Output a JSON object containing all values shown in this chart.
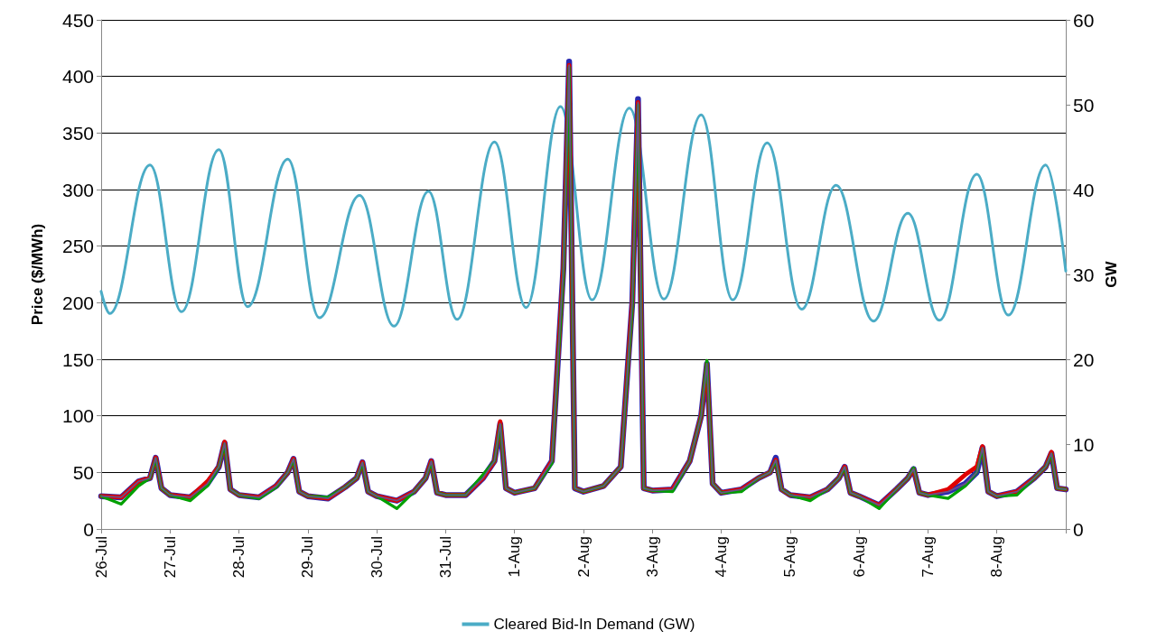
{
  "chart_data": {
    "type": "line",
    "ylabel": "Price ($/MWh)",
    "y2label": "GW",
    "x": [
      "--07-26",
      "--07-26T07:00",
      "--07-26T13:00",
      "--07-26T17:00",
      "--07-26T19:00",
      "--07-26T21:00",
      "--07-27",
      "--07-27T07:00",
      "--07-27T13:00",
      "--07-27T17:00",
      "--07-27T19:00",
      "--07-27T21:00",
      "--07-28",
      "--07-28T07:00",
      "--07-28T13:00",
      "--07-28T17:00",
      "--07-28T19:00",
      "--07-28T21:00",
      "--07-29",
      "--07-29T07:00",
      "--07-29T13:00",
      "--07-29T17:00",
      "--07-29T19:00",
      "--07-29T21:00",
      "--07-30",
      "--07-30T07:00",
      "--07-30T13:00",
      "--07-30T17:00",
      "--07-30T19:00",
      "--07-30T21:00",
      "--07-31",
      "--07-31T07:00",
      "--07-31T13:00",
      "--07-31T17:00",
      "--07-31T19:00",
      "--07-31T21:00",
      "--08-01",
      "--08-01T07:00",
      "--08-01T13:00",
      "--08-01T17:00",
      "--08-01T19:00",
      "--08-01T21:00",
      "--08-02",
      "--08-02T07:00",
      "--08-02T13:00",
      "--08-02T17:00",
      "--08-02T19:00",
      "--08-02T21:00",
      "--08-03",
      "--08-03T07:00",
      "--08-03T13:00",
      "--08-03T17:00",
      "--08-03T19:00",
      "--08-03T21:00",
      "--08-04",
      "--08-04T07:00",
      "--08-04T13:00",
      "--08-04T17:00",
      "--08-04T19:00",
      "--08-04T21:00",
      "--08-05",
      "--08-05T07:00",
      "--08-05T13:00",
      "--08-05T17:00",
      "--08-05T19:00",
      "--08-05T21:00",
      "--08-06",
      "--08-06T07:00",
      "--08-06T13:00",
      "--08-06T17:00",
      "--08-06T19:00",
      "--08-06T21:00",
      "--08-07",
      "--08-07T07:00",
      "--08-07T13:00",
      "--08-07T17:00",
      "--08-07T19:00",
      "--08-07T21:00",
      "--08-08",
      "--08-08T07:00",
      "--08-08T13:00",
      "--08-08T17:00",
      "--08-08T19:00",
      "--08-08T21:00",
      "--08-09"
    ],
    "series": [
      {
        "color": "#2a2ab0",
        "values": [
          29,
          28,
          42,
          45,
          63,
          36,
          30,
          28,
          40,
          55,
          76,
          35,
          30,
          28,
          38,
          50,
          62,
          33,
          29,
          27,
          37,
          45,
          59,
          33,
          29,
          25,
          33,
          45,
          60,
          32,
          30,
          30,
          45,
          60,
          93,
          36,
          32,
          36,
          60,
          230,
          413,
          36,
          33,
          38,
          55,
          200,
          380,
          36,
          34,
          35,
          60,
          100,
          146,
          40,
          32,
          35,
          45,
          50,
          63,
          35,
          30,
          28,
          35,
          45,
          55,
          32,
          29,
          21,
          35,
          45,
          53,
          32,
          30,
          33,
          40,
          50,
          72,
          33,
          29,
          33,
          45,
          55,
          67,
          36,
          35
        ]
      },
      {
        "color": "#e00000",
        "values": [
          29,
          28,
          42,
          45,
          63,
          36,
          30,
          28,
          42,
          55,
          77,
          35,
          30,
          28,
          38,
          50,
          62,
          33,
          29,
          27,
          37,
          45,
          59,
          33,
          29,
          25,
          33,
          45,
          60,
          32,
          30,
          30,
          45,
          60,
          95,
          36,
          32,
          36,
          60,
          230,
          410,
          36,
          33,
          38,
          55,
          200,
          377,
          36,
          34,
          35,
          60,
          100,
          146,
          40,
          32,
          35,
          45,
          50,
          61,
          35,
          30,
          28,
          35,
          45,
          55,
          32,
          29,
          21,
          35,
          45,
          53,
          32,
          30,
          35,
          48,
          55,
          73,
          33,
          29,
          33,
          45,
          55,
          68,
          36,
          35
        ]
      },
      {
        "color": "#00a000",
        "values": [
          29,
          22,
          38,
          45,
          62,
          36,
          30,
          25,
          38,
          55,
          75,
          35,
          30,
          27,
          37,
          50,
          61,
          33,
          29,
          28,
          37,
          45,
          58,
          33,
          29,
          18,
          33,
          45,
          59,
          32,
          30,
          30,
          48,
          60,
          92,
          36,
          32,
          36,
          58,
          225,
          408,
          36,
          33,
          38,
          55,
          195,
          375,
          36,
          34,
          33,
          60,
          100,
          149,
          40,
          32,
          33,
          45,
          50,
          60,
          35,
          30,
          25,
          35,
          45,
          54,
          32,
          29,
          18,
          35,
          45,
          54,
          32,
          30,
          27,
          38,
          50,
          71,
          33,
          29,
          30,
          45,
          55,
          66,
          36,
          35
        ]
      },
      {
        "color": "#6a4f8a",
        "values": [
          29,
          28,
          42,
          45,
          63,
          36,
          30,
          28,
          40,
          55,
          76,
          35,
          30,
          28,
          38,
          50,
          62,
          33,
          29,
          27,
          37,
          45,
          59,
          33,
          29,
          25,
          33,
          45,
          60,
          32,
          30,
          30,
          45,
          60,
          93,
          36,
          32,
          36,
          60,
          230,
          410,
          36,
          33,
          38,
          55,
          200,
          377,
          36,
          34,
          35,
          60,
          100,
          146,
          40,
          32,
          35,
          45,
          50,
          61,
          35,
          30,
          28,
          35,
          45,
          55,
          32,
          29,
          21,
          35,
          45,
          53,
          32,
          30,
          33,
          40,
          50,
          72,
          33,
          29,
          33,
          45,
          55,
          67,
          36,
          35
        ]
      },
      {
        "name": "Cleared Bid-In Demand (GW)",
        "color": "#4bacc6",
        "axis": "y2",
        "x": [
          "--07-26",
          "--07-26T03:00",
          "--07-26T17:00",
          "--07-27T04:00",
          "--07-27T17:00",
          "--07-28T03:00",
          "--07-28T17:00",
          "--07-29T04:00",
          "--07-29T18:00",
          "--07-30T06:00",
          "--07-30T18:00",
          "--07-31T04:00",
          "--07-31T17:00",
          "--08-01T04:00",
          "--08-01T16:00",
          "--08-02T03:00",
          "--08-02T16:00",
          "--08-03T04:00",
          "--08-03T17:00",
          "--08-04T04:00",
          "--08-04T16:00",
          "--08-05T04:00",
          "--08-05T16:00",
          "--08-06T05:00",
          "--08-06T17:00",
          "--08-07T04:00",
          "--08-07T17:00",
          "--08-08T04:00",
          "--08-08T17:00",
          "--08-09"
        ],
        "values": [
          28.0,
          25.4,
          42.9,
          25.6,
          44.7,
          26.2,
          43.6,
          24.9,
          39.3,
          23.9,
          39.8,
          24.7,
          45.6,
          26.1,
          49.8,
          27.0,
          49.6,
          27.1,
          48.8,
          27.0,
          45.5,
          25.9,
          40.5,
          24.5,
          37.2,
          24.6,
          41.8,
          25.2,
          42.9,
          30.4
        ]
      }
    ],
    "xlim": [
      "--07-26",
      "--08-09"
    ],
    "xticks": [
      {
        "value": "--07-26",
        "label": "26-Jul"
      },
      {
        "value": "--07-27",
        "label": "27-Jul"
      },
      {
        "value": "--07-28",
        "label": "28-Jul"
      },
      {
        "value": "--07-29",
        "label": "29-Jul"
      },
      {
        "value": "--07-30",
        "label": "30-Jul"
      },
      {
        "value": "--07-31",
        "label": "31-Jul"
      },
      {
        "value": "--08-01",
        "label": "1-Aug"
      },
      {
        "value": "--08-02",
        "label": "2-Aug"
      },
      {
        "value": "--08-03",
        "label": "3-Aug"
      },
      {
        "value": "--08-04",
        "label": "4-Aug"
      },
      {
        "value": "--08-05",
        "label": "5-Aug"
      },
      {
        "value": "--08-06",
        "label": "6-Aug"
      },
      {
        "value": "--08-07",
        "label": "7-Aug"
      },
      {
        "value": "--08-08",
        "label": "8-Aug"
      },
      {
        "value": "--08-09",
        "label": null
      }
    ],
    "ylim": [
      0,
      450
    ],
    "yticks": [
      0,
      50,
      100,
      150,
      200,
      250,
      300,
      350,
      400,
      450
    ],
    "y2lim": [
      0,
      60
    ],
    "y2ticks": [
      0,
      10,
      20,
      30,
      40,
      50,
      60
    ],
    "grid": "y",
    "legend": "bottom",
    "marker": "none",
    "line_style": "solid"
  }
}
